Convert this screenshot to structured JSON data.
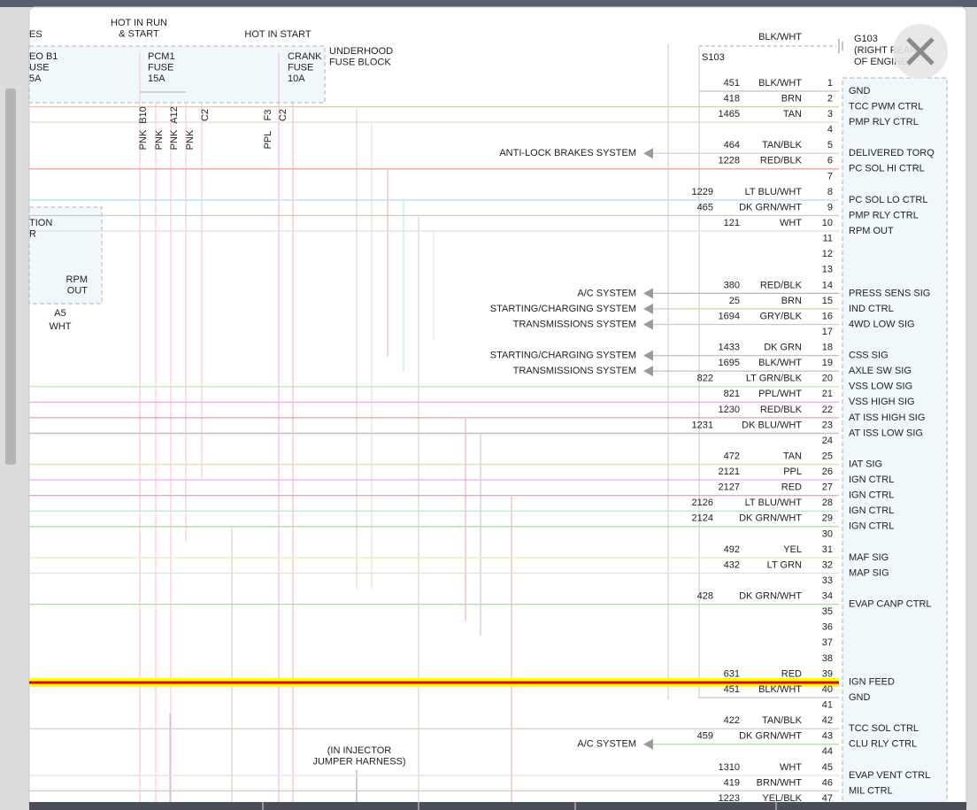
{
  "labels": {
    "es": "ES",
    "hot_in_run": [
      "HOT IN RUN",
      "& START"
    ],
    "hot_in_start": "HOT IN START",
    "fuse_left": [
      "EO B1",
      "USE",
      "5A"
    ],
    "pcm1_fuse": [
      "PCM1",
      "FUSE",
      "15A"
    ],
    "crank_fuse": [
      "CRANK",
      "FUSE",
      "10A"
    ],
    "fuse_block": [
      "UNDERHOOD",
      "FUSE BLOCK"
    ],
    "fuse_pins": [
      "B10",
      "A12",
      "C2",
      "F3",
      "C2"
    ],
    "fuse_wires": [
      "PNK",
      "PNK",
      "PNK",
      "PNK",
      "PPL"
    ],
    "ground_wire": "BLK/WHT",
    "g103": [
      "G103",
      "(RIGHT REAR",
      "OF ENGINE)"
    ],
    "s103": "S103",
    "module_left": [
      "TION",
      "R"
    ],
    "rpm_out": [
      "RPM",
      "OUT"
    ],
    "a5": "A5",
    "a5_wire": "WHT",
    "injector": [
      "(IN INJECTOR",
      "JUMPER HARNESS)"
    ]
  },
  "pins": [
    {
      "pin": 1,
      "circuit": 451,
      "color_name": "BLK/WHT",
      "function": "GND",
      "wire": "#c4c4c4"
    },
    {
      "pin": 2,
      "circuit": 418,
      "color_name": "BRN",
      "function": "TCC PWM CTRL",
      "wire": "#d8cfbc"
    },
    {
      "pin": 3,
      "circuit": 1465,
      "color_name": "TAN",
      "function": "PMP RLY CTRL",
      "wire": "#e2ddc8"
    },
    {
      "pin": 4
    },
    {
      "pin": 5,
      "circuit": 464,
      "color_name": "TAN/BLK",
      "function": "DELIVERED TORQ",
      "system": "ANTI-LOCK BRAKES SYSTEM",
      "wire": "#d8d3c0"
    },
    {
      "pin": 6,
      "circuit": 1228,
      "color_name": "RED/BLK",
      "function": "PC SOL HI CTRL",
      "wire": "#e4a4a4"
    },
    {
      "pin": 7
    },
    {
      "pin": 8,
      "circuit": 1229,
      "color_name": "LT BLU/WHT",
      "function": "PC SOL LO CTRL",
      "wire": "#a8e8f2"
    },
    {
      "pin": 9,
      "circuit": 465,
      "color_name": "DK GRN/WHT",
      "function": "PMP RLY CTRL",
      "wire": "#b8d8b0"
    },
    {
      "pin": 10,
      "circuit": 121,
      "color_name": "WHT",
      "function": "RPM OUT",
      "wire": "#e2e2e2"
    },
    {
      "pin": 11
    },
    {
      "pin": 12
    },
    {
      "pin": 13
    },
    {
      "pin": 14,
      "circuit": 380,
      "color_name": "RED/BLK",
      "function": "PRESS SENS SIG",
      "system": "A/C SYSTEM",
      "wire": "#e4a4a4"
    },
    {
      "pin": 15,
      "circuit": 25,
      "color_name": "BRN",
      "function": "IND CTRL",
      "system": "STARTING/CHARGING SYSTEM",
      "wire": "#d8cfbc"
    },
    {
      "pin": 16,
      "circuit": 1694,
      "color_name": "GRY/BLK",
      "function": "4WD LOW SIG",
      "system": "TRANSMISSIONS SYSTEM",
      "wire": "#cccccc"
    },
    {
      "pin": 17
    },
    {
      "pin": 18,
      "circuit": 1433,
      "color_name": "DK GRN",
      "function": "CSS SIG",
      "system": "STARTING/CHARGING SYSTEM",
      "wire": "#b0d0a8"
    },
    {
      "pin": 19,
      "circuit": 1695,
      "color_name": "BLK/WHT",
      "function": "AXLE SW SIG",
      "system": "TRANSMISSIONS SYSTEM",
      "wire": "#c4c4c4"
    },
    {
      "pin": 20,
      "circuit": 822,
      "color_name": "LT GRN/BLK",
      "function": "VSS LOW SIG",
      "wire": "#c0e6b8"
    },
    {
      "pin": 21,
      "circuit": 821,
      "color_name": "PPL/WHT",
      "function": "VSS HIGH SIG",
      "wire": "#f0b0f0"
    },
    {
      "pin": 22,
      "circuit": 1230,
      "color_name": "RED/BLK",
      "function": "AT ISS HIGH SIG",
      "wire": "#e4a4a4"
    },
    {
      "pin": 23,
      "circuit": 1231,
      "color_name": "DK BLU/WHT",
      "function": "AT ISS LOW SIG",
      "wire": "#b8bcd8"
    },
    {
      "pin": 24
    },
    {
      "pin": 25,
      "circuit": 472,
      "color_name": "TAN",
      "function": "IAT SIG",
      "wire": "#e2ddc8"
    },
    {
      "pin": 26,
      "circuit": 2121,
      "color_name": "PPL",
      "function": "IGN CTRL",
      "wire": "#f0b0f0"
    },
    {
      "pin": 27,
      "circuit": 2127,
      "color_name": "RED",
      "function": "IGN CTRL",
      "wire": "#f0a8a8"
    },
    {
      "pin": 28,
      "circuit": 2126,
      "color_name": "LT BLU/WHT",
      "function": "IGN CTRL",
      "wire": "#a8e8f2"
    },
    {
      "pin": 29,
      "circuit": 2124,
      "color_name": "DK GRN/WHT",
      "function": "IGN CTRL",
      "wire": "#b8d8b0"
    },
    {
      "pin": 30
    },
    {
      "pin": 31,
      "circuit": 492,
      "color_name": "YEL",
      "function": "MAF SIG",
      "wire": "#f6eea0"
    },
    {
      "pin": 32,
      "circuit": 432,
      "color_name": "LT GRN",
      "function": "MAP SIG",
      "wire": "#c8f0c0"
    },
    {
      "pin": 33
    },
    {
      "pin": 34,
      "circuit": 428,
      "color_name": "DK GRN/WHT",
      "function": "EVAP CANP CTRL",
      "wire": "#b8d8b0"
    },
    {
      "pin": 35
    },
    {
      "pin": 36
    },
    {
      "pin": 37
    },
    {
      "pin": 38
    },
    {
      "pin": 39,
      "circuit": 631,
      "color_name": "RED",
      "function": "IGN FEED",
      "wire": "#f0a8a8"
    },
    {
      "pin": 40,
      "circuit": 451,
      "color_name": "BLK/WHT",
      "function": "GND",
      "wire": "#c4c4c4"
    },
    {
      "pin": 41
    },
    {
      "pin": 42,
      "circuit": 422,
      "color_name": "TAN/BLK",
      "function": "TCC SOL CTRL",
      "wire": "#d8d3c0"
    },
    {
      "pin": 43,
      "circuit": 459,
      "color_name": "DK GRN/WHT",
      "function": "CLU RLY CTRL",
      "system": "A/C SYSTEM",
      "wire": "#b8d8b0"
    },
    {
      "pin": 44
    },
    {
      "pin": 45,
      "circuit": 1310,
      "color_name": "WHT",
      "function": "EVAP VENT CTRL",
      "wire": "#e2e2e2"
    },
    {
      "pin": 46,
      "circuit": 419,
      "color_name": "BRN/WHT",
      "function": "MIL CTRL",
      "wire": "#d8cfbc"
    },
    {
      "pin": 47,
      "circuit": 1223,
      "color_name": "YEL/BLK",
      "wire": "#eee6a0"
    }
  ]
}
